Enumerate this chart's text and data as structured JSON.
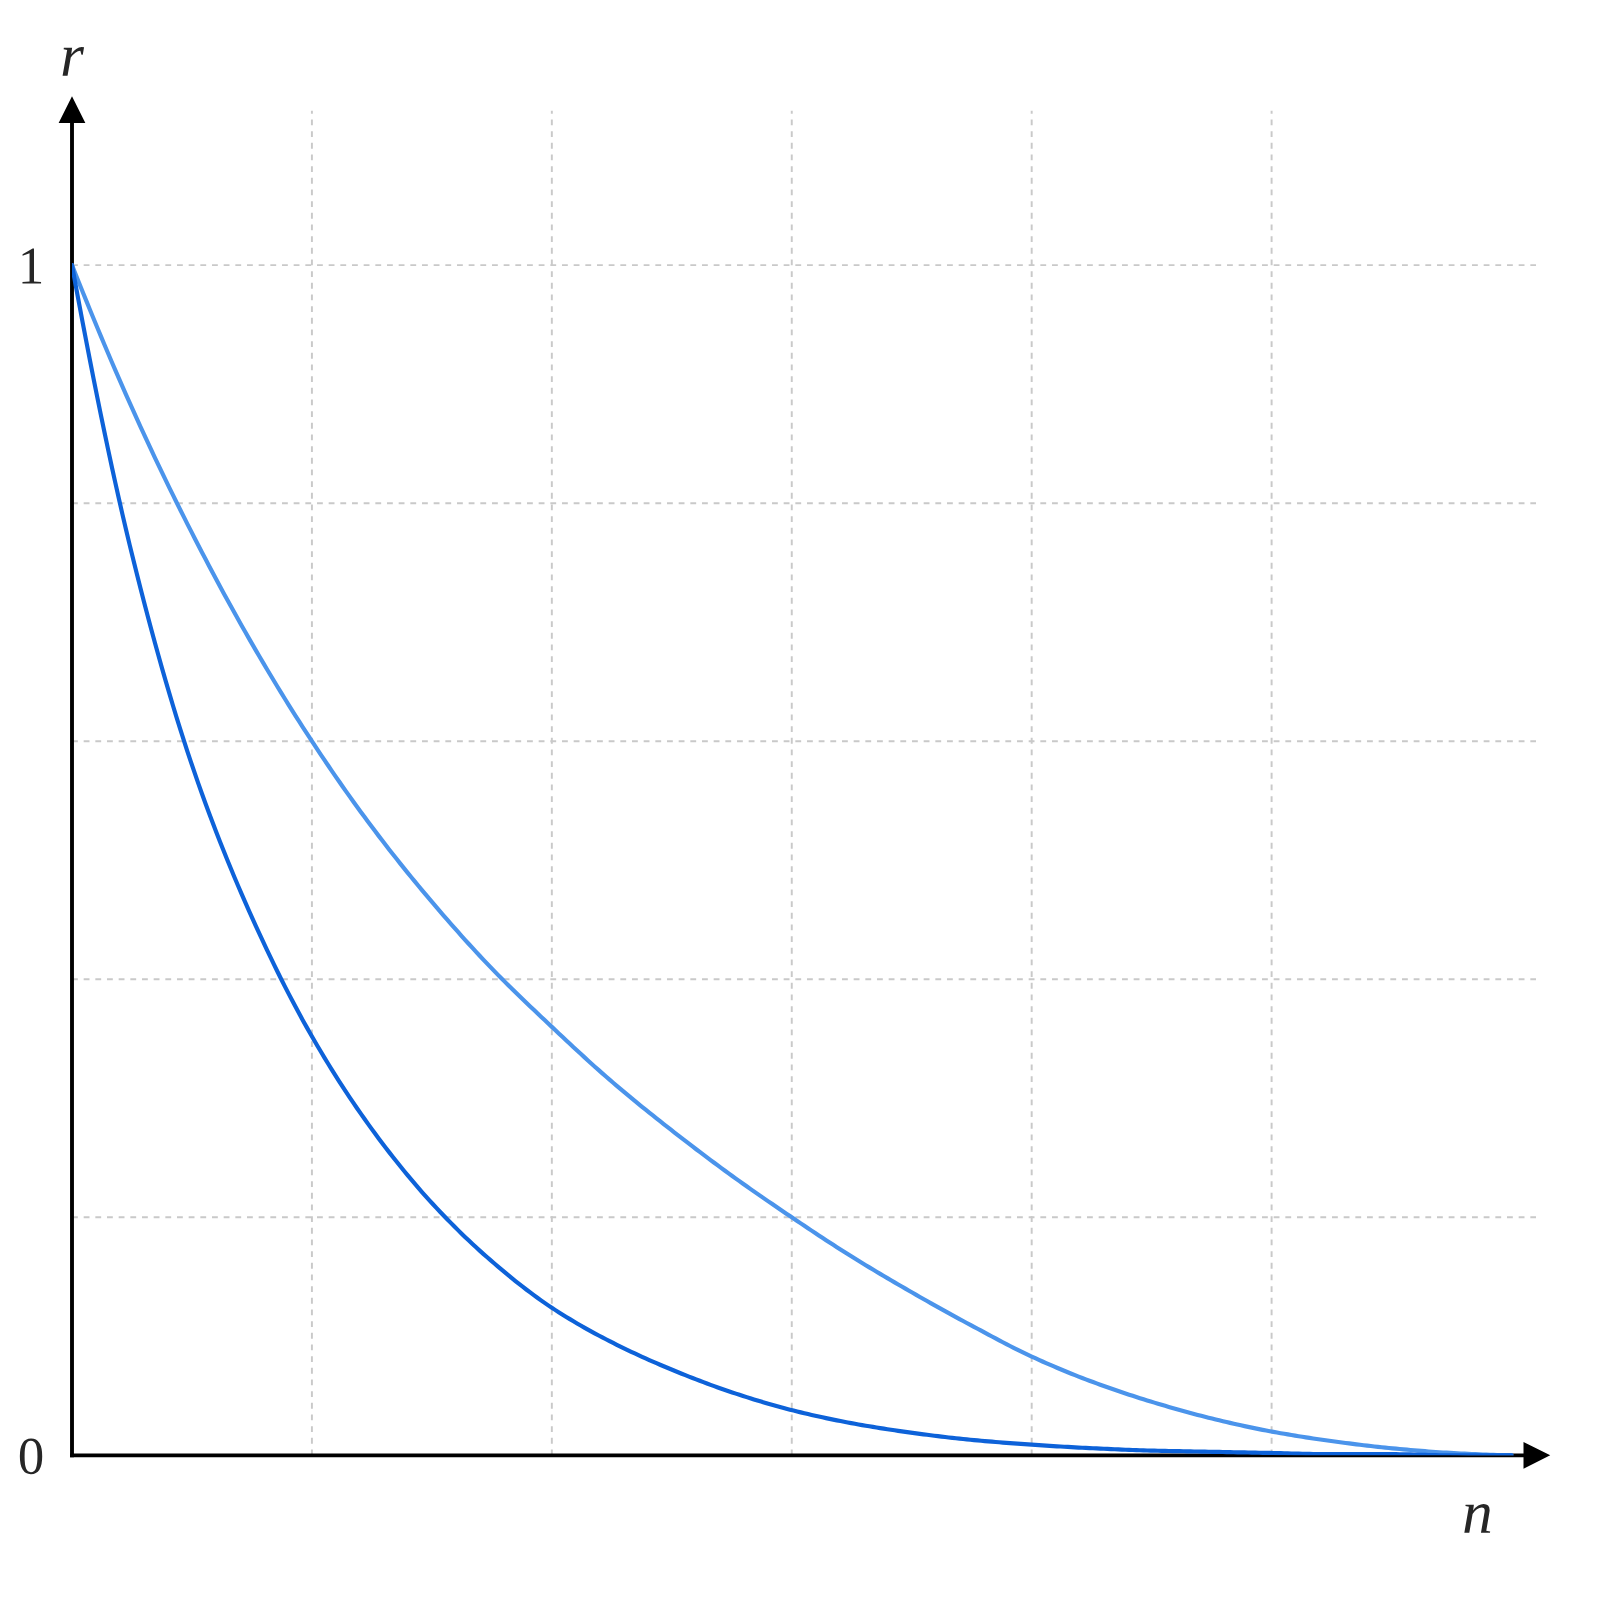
{
  "chart_data": {
    "type": "line",
    "xlabel": "n",
    "ylabel": "r",
    "categories": [
      null,
      null,
      null,
      null,
      null,
      null,
      null,
      null,
      null,
      null,
      null,
      null,
      null,
      null,
      null,
      null,
      null,
      null,
      null,
      null,
      null,
      null,
      null,
      null,
      null
    ],
    "series": [
      {
        "color": "#4b94eb",
        "values": [
          1,
          0.88,
          0.775,
          0.682,
          0.6,
          0.528,
          0.465,
          0.409,
          0.36,
          0.314,
          0.273,
          0.235,
          0.2,
          0.167,
          0.137,
          0.109,
          0.083,
          0.062,
          0.045,
          0.031,
          0.02,
          0.012,
          0.006,
          0.002,
          0
        ]
      },
      {
        "color": "#0d62d9",
        "values": [
          1,
          0.757,
          0.58,
          0.452,
          0.352,
          0.274,
          0.212,
          0.163,
          0.124,
          0.095,
          0.072,
          0.053,
          0.038,
          0.027,
          0.019,
          0.013,
          0.009,
          0.006,
          0.004,
          0.003,
          0.002,
          0.001,
          0.001,
          0,
          0
        ]
      }
    ],
    "ylim": [
      0,
      1.13
    ],
    "yticks": [
      0,
      {
        "value": 0.2,
        "label": null
      },
      {
        "value": 0.4,
        "label": null
      },
      {
        "value": 0.6,
        "label": null
      },
      {
        "value": 0.8,
        "label": null
      },
      1
    ],
    "grid": true,
    "tick_labels": "y"
  }
}
